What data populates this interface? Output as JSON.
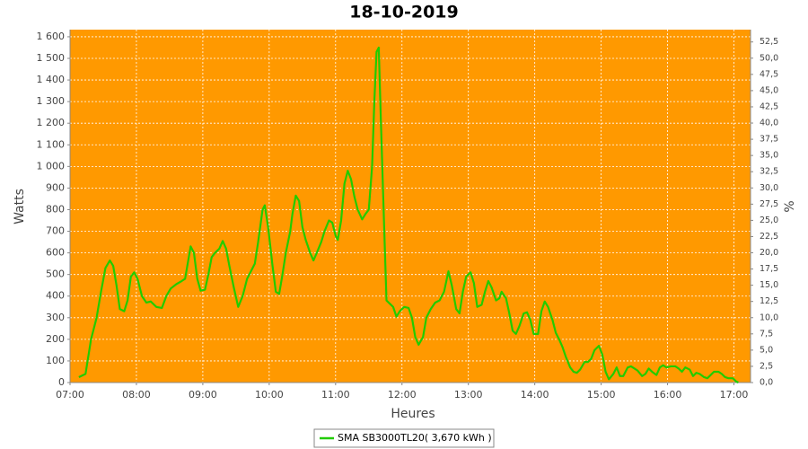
{
  "chart_data": {
    "type": "line",
    "title": "18-10-2019",
    "x_label": "Heures",
    "y_label": "Watts",
    "y2_label": "%",
    "background": "#ff9900",
    "grid": true,
    "x": [
      "07:08",
      "07:14",
      "07:19",
      "07:24",
      "07:28",
      "07:32",
      "07:36",
      "07:39",
      "07:42",
      "07:45",
      "07:49",
      "07:52",
      "07:55",
      "07:58",
      "08:01",
      "08:05",
      "08:09",
      "08:13",
      "08:18",
      "08:23",
      "08:27",
      "08:31",
      "08:36",
      "08:41",
      "08:44",
      "08:46",
      "08:49",
      "08:52",
      "08:55",
      "08:58",
      "09:02",
      "09:05",
      "09:08",
      "09:11",
      "09:15",
      "09:18",
      "09:21",
      "09:24",
      "09:28",
      "09:32",
      "09:36",
      "09:40",
      "09:44",
      "09:47",
      "09:50",
      "09:54",
      "09:56",
      "09:59",
      "10:03",
      "10:06",
      "10:09",
      "10:12",
      "10:15",
      "10:19",
      "10:21",
      "10:24",
      "10:27",
      "10:30",
      "10:33",
      "10:37",
      "10:40",
      "10:43",
      "10:47",
      "10:50",
      "10:54",
      "10:57",
      "11:00",
      "11:02",
      "11:05",
      "11:08",
      "11:11",
      "11:14",
      "11:17",
      "11:20",
      "11:24",
      "11:27",
      "11:30",
      "11:33",
      "11:35",
      "11:37",
      "11:39",
      "11:41",
      "11:44",
      "11:46",
      "11:49",
      "11:52",
      "11:55",
      "11:58",
      "12:02",
      "12:06",
      "12:09",
      "12:12",
      "12:15",
      "12:19",
      "12:22",
      "12:26",
      "12:30",
      "12:34",
      "12:38",
      "12:42",
      "12:45",
      "12:49",
      "12:52",
      "12:55",
      "12:58",
      "13:02",
      "13:05",
      "13:08",
      "13:12",
      "13:15",
      "13:18",
      "13:21",
      "13:25",
      "13:28",
      "13:30",
      "13:34",
      "13:37",
      "13:40",
      "13:43",
      "13:46",
      "13:50",
      "13:53",
      "13:56",
      "13:59",
      "14:03",
      "14:06",
      "14:09",
      "14:12",
      "14:16",
      "14:19",
      "14:22",
      "14:25",
      "14:28",
      "14:32",
      "14:35",
      "14:38",
      "14:41",
      "14:45",
      "14:48",
      "14:51",
      "14:54",
      "14:58",
      "15:01",
      "15:04",
      "15:07",
      "15:11",
      "15:14",
      "15:17",
      "15:20",
      "15:24",
      "15:27",
      "15:30",
      "15:33",
      "15:37",
      "15:40",
      "15:43",
      "15:46",
      "15:50",
      "15:53",
      "15:56",
      "15:59",
      "16:03",
      "16:07",
      "16:10",
      "16:13",
      "16:16",
      "16:20",
      "16:23",
      "16:26",
      "16:29",
      "16:33",
      "16:36",
      "16:39",
      "16:42",
      "16:46",
      "16:49",
      "16:52",
      "16:55",
      "16:59",
      "17:02",
      "17:04"
    ],
    "series": [
      {
        "name": "SMA SB3000TL20( 3,670 kWh )",
        "color": "#22cc00",
        "values": [
          25,
          40,
          200,
          300,
          420,
          530,
          565,
          540,
          450,
          340,
          330,
          380,
          490,
          510,
          480,
          400,
          370,
          375,
          350,
          345,
          400,
          435,
          455,
          470,
          480,
          540,
          630,
          600,
          480,
          425,
          430,
          500,
          580,
          600,
          620,
          655,
          620,
          540,
          440,
          350,
          400,
          480,
          520,
          550,
          650,
          800,
          820,
          720,
          540,
          420,
          410,
          500,
          600,
          700,
          780,
          865,
          840,
          720,
          660,
          600,
          565,
          600,
          650,
          700,
          750,
          740,
          680,
          660,
          750,
          920,
          980,
          940,
          860,
          800,
          755,
          780,
          800,
          1000,
          1300,
          1530,
          1550,
          1200,
          700,
          380,
          365,
          350,
          305,
          330,
          350,
          345,
          300,
          210,
          175,
          210,
          300,
          340,
          370,
          380,
          420,
          515,
          450,
          340,
          320,
          420,
          490,
          510,
          460,
          350,
          360,
          420,
          470,
          440,
          380,
          390,
          420,
          390,
          320,
          240,
          225,
          260,
          320,
          325,
          290,
          225,
          225,
          330,
          375,
          350,
          290,
          230,
          200,
          165,
          120,
          70,
          50,
          45,
          60,
          95,
          95,
          110,
          150,
          170,
          130,
          50,
          15,
          40,
          70,
          30,
          30,
          70,
          75,
          65,
          55,
          30,
          40,
          65,
          50,
          35,
          70,
          80,
          70,
          75,
          75,
          65,
          50,
          70,
          60,
          30,
          45,
          40,
          25,
          20,
          35,
          50,
          50,
          40,
          25,
          20,
          20,
          5,
          0
        ]
      }
    ],
    "xlim": [
      "07:00",
      "17:15"
    ],
    "xticks": [
      "07:00",
      "08:00",
      "09:00",
      "10:00",
      "11:00",
      "12:00",
      "13:00",
      "14:00",
      "15:00",
      "16:00",
      "17:00"
    ],
    "ylim": [
      0,
      1633
    ],
    "yticks": [
      0,
      100,
      200,
      300,
      400,
      500,
      600,
      700,
      800,
      900,
      {
        "value": 1000,
        "label": "1 000"
      },
      {
        "value": 1100,
        "label": "1 100"
      },
      {
        "value": 1200,
        "label": "1 200"
      },
      {
        "value": 1300,
        "label": "1 300"
      },
      {
        "value": 1400,
        "label": "1 400"
      },
      {
        "value": 1500,
        "label": "1 500"
      },
      {
        "value": 1600,
        "label": "1 600"
      }
    ],
    "y2lim": [
      0,
      54.4
    ],
    "y2ticks": [
      {
        "value": 0,
        "label": "0,0"
      },
      {
        "value": 2.5,
        "label": "2,5"
      },
      {
        "value": 5,
        "label": "5,0"
      },
      {
        "value": 7.5,
        "label": "7,5"
      },
      {
        "value": 10,
        "label": "10,0"
      },
      {
        "value": 12.5,
        "label": "12,5"
      },
      {
        "value": 15,
        "label": "15,0"
      },
      {
        "value": 17.5,
        "label": "17,5"
      },
      {
        "value": 20,
        "label": "20,0"
      },
      {
        "value": 22.5,
        "label": "22,5"
      },
      {
        "value": 25,
        "label": "25,0"
      },
      {
        "value": 27.5,
        "label": "27,5"
      },
      {
        "value": 30,
        "label": "30,0"
      },
      {
        "value": 32.5,
        "label": "32,5"
      },
      {
        "value": 35,
        "label": "35,0"
      },
      {
        "value": 37.5,
        "label": "37,5"
      },
      {
        "value": 40,
        "label": "40,0"
      },
      {
        "value": 42.5,
        "label": "42,5"
      },
      {
        "value": 45,
        "label": "45,0"
      },
      {
        "value": 47.5,
        "label": "47,5"
      },
      {
        "value": 50,
        "label": "50,0"
      },
      {
        "value": 52.5,
        "label": "52,5"
      }
    ]
  }
}
